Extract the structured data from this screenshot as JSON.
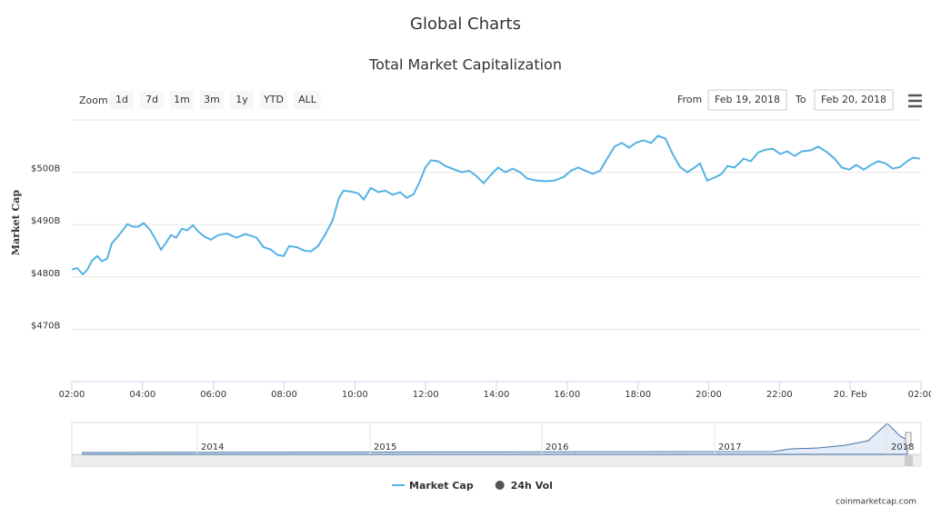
{
  "chart_data": {
    "type": "line",
    "title": "Global Charts",
    "subtitle": "Total Market Capitalization",
    "y_label": "Market Cap",
    "zoom_label": "Zoom",
    "zoom_buttons": [
      "1d",
      "7d",
      "1m",
      "3m",
      "1y",
      "YTD",
      "ALL"
    ],
    "from_label": "From",
    "from_date": "Feb 19, 2018",
    "to_label": "To",
    "to_date": "Feb 20, 2018",
    "credits": "coinmarketcap.com",
    "navigator_labels": [
      "2014",
      "2015",
      "2016",
      "2017",
      "2018"
    ],
    "grid": true,
    "xlim": [
      2,
      26
    ],
    "xticks": [
      {
        "value": 2,
        "label": "02:00"
      },
      {
        "value": 4,
        "label": "04:00"
      },
      {
        "value": 6,
        "label": "06:00"
      },
      {
        "value": 8,
        "label": "08:00"
      },
      {
        "value": 10,
        "label": "10:00"
      },
      {
        "value": 12,
        "label": "12:00"
      },
      {
        "value": 14,
        "label": "14:00"
      },
      {
        "value": 16,
        "label": "16:00"
      },
      {
        "value": 18,
        "label": "18:00"
      },
      {
        "value": 20,
        "label": "20:00"
      },
      {
        "value": 22,
        "label": "22:00"
      },
      {
        "value": 24,
        "label": "20. Feb"
      },
      {
        "value": 26,
        "label": "02:00"
      }
    ],
    "ylim": [
      460,
      510
    ],
    "yticks": [
      {
        "value": 470,
        "label": "$470B"
      },
      {
        "value": 480,
        "label": "$480B"
      },
      {
        "value": 490,
        "label": "$490B"
      },
      {
        "value": 500,
        "label": "$500B"
      }
    ],
    "x": [
      2.0,
      2.15,
      2.31,
      2.44,
      2.57,
      2.72,
      2.85,
      3.0,
      3.13,
      3.31,
      3.57,
      3.72,
      3.88,
      4.03,
      4.21,
      4.36,
      4.52,
      4.65,
      4.8,
      4.95,
      5.11,
      5.26,
      5.42,
      5.57,
      5.75,
      5.93,
      6.14,
      6.39,
      6.65,
      6.91,
      7.22,
      7.42,
      7.63,
      7.81,
      7.99,
      8.14,
      8.35,
      8.58,
      8.76,
      8.96,
      9.17,
      9.37,
      9.55,
      9.68,
      9.89,
      10.09,
      10.25,
      10.45,
      10.66,
      10.86,
      11.07,
      11.28,
      11.46,
      11.66,
      11.84,
      11.99,
      12.15,
      12.35,
      12.56,
      12.82,
      13.02,
      13.23,
      13.43,
      13.64,
      13.84,
      14.05,
      14.26,
      14.46,
      14.67,
      14.87,
      15.13,
      15.39,
      15.64,
      15.9,
      16.11,
      16.31,
      16.52,
      16.72,
      16.93,
      17.13,
      17.34,
      17.54,
      17.75,
      17.96,
      18.16,
      18.37,
      18.57,
      18.78,
      18.98,
      19.19,
      19.4,
      19.6,
      19.75,
      19.96,
      20.17,
      20.37,
      20.53,
      20.73,
      20.99,
      21.19,
      21.4,
      21.6,
      21.81,
      22.02,
      22.22,
      22.43,
      22.63,
      22.89,
      23.09,
      23.35,
      23.56,
      23.76,
      23.97,
      24.17,
      24.38,
      24.59,
      24.79,
      25.0,
      25.2,
      25.41,
      25.61,
      25.77,
      25.97
    ],
    "series": [
      {
        "name": "Market Cap",
        "color": "#55b2e4",
        "values": [
          481.4,
          481.7,
          480.5,
          481.4,
          483.1,
          484.0,
          483.0,
          483.5,
          486.4,
          487.8,
          490.1,
          489.6,
          489.6,
          490.3,
          489.0,
          487.3,
          485.2,
          486.4,
          488.0,
          487.5,
          489.2,
          488.9,
          489.9,
          488.7,
          487.7,
          487.1,
          488.0,
          488.3,
          487.5,
          488.2,
          487.5,
          485.7,
          485.2,
          484.2,
          484.0,
          485.9,
          485.7,
          485.0,
          484.9,
          485.9,
          488.2,
          490.8,
          495.1,
          496.5,
          496.3,
          496.0,
          494.8,
          497.0,
          496.2,
          496.5,
          495.7,
          496.2,
          495.1,
          495.8,
          498.3,
          500.9,
          502.3,
          502.1,
          501.2,
          500.5,
          500.0,
          500.3,
          499.3,
          497.9,
          499.5,
          500.9,
          500.0,
          500.7,
          500.0,
          498.8,
          498.4,
          498.3,
          498.4,
          499.1,
          500.3,
          500.9,
          500.3,
          499.7,
          500.3,
          502.6,
          504.9,
          505.6,
          504.7,
          505.7,
          506.1,
          505.6,
          507.0,
          506.4,
          503.5,
          501.0,
          500.0,
          500.9,
          501.7,
          498.4,
          499.0,
          499.7,
          501.2,
          500.9,
          502.6,
          502.1,
          503.8,
          504.3,
          504.5,
          503.5,
          504.0,
          503.1,
          504.0,
          504.2,
          504.9,
          503.8,
          502.6,
          500.9,
          500.5,
          501.4,
          500.5,
          501.4,
          502.1,
          501.7,
          500.7,
          501.0,
          502.1,
          502.8,
          502.6
        ]
      },
      {
        "name": "24h Vol",
        "color": "#555555",
        "visible": false
      }
    ]
  }
}
